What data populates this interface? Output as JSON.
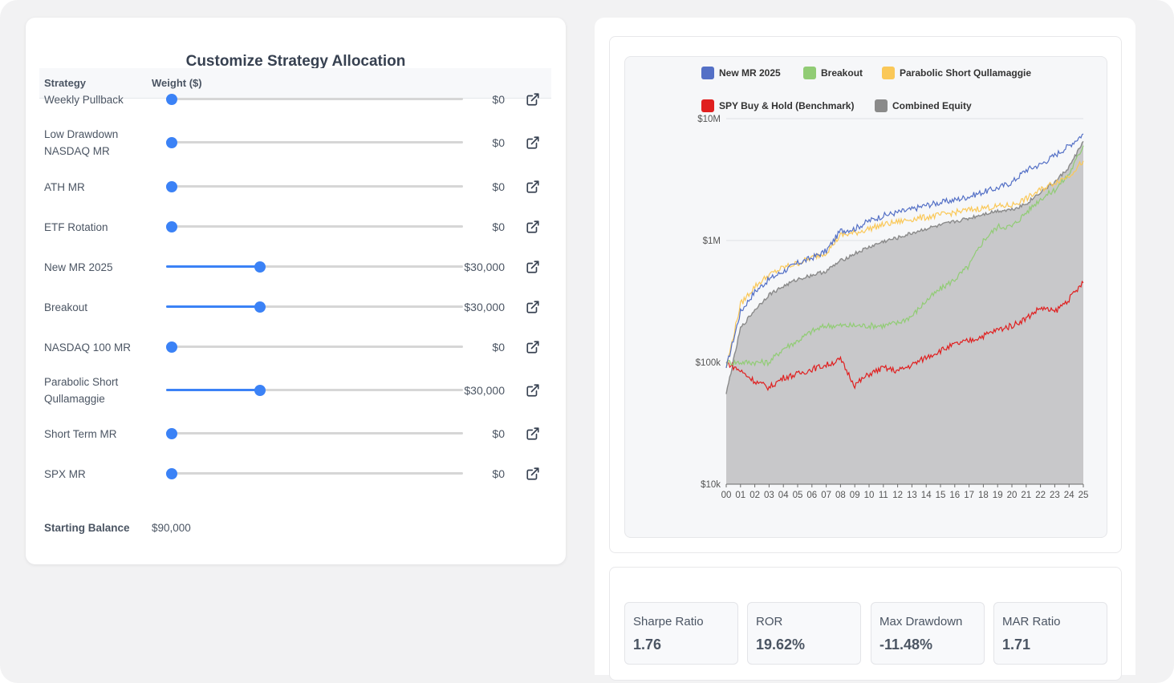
{
  "allocation": {
    "title": "Customize Strategy Allocation",
    "col_strategy": "Strategy",
    "col_weight": "Weight ($)",
    "rows": [
      {
        "name": "Weekly Pullback",
        "value": "$0",
        "fraction": 0
      },
      {
        "name": "Low Drawdown NASDAQ MR",
        "value": "$0",
        "fraction": 0
      },
      {
        "name": "ATH MR",
        "value": "$0",
        "fraction": 0
      },
      {
        "name": "ETF Rotation",
        "value": "$0",
        "fraction": 0
      },
      {
        "name": "New MR 2025",
        "value": "$30,000",
        "fraction": 0.31
      },
      {
        "name": "Breakout",
        "value": "$30,000",
        "fraction": 0.31
      },
      {
        "name": "NASDAQ 100 MR",
        "value": "$0",
        "fraction": 0
      },
      {
        "name": "Parabolic Short Qullamaggie",
        "value": "$30,000",
        "fraction": 0.31
      },
      {
        "name": "Short Term MR",
        "value": "$0",
        "fraction": 0
      },
      {
        "name": "SPX MR",
        "value": "$0",
        "fraction": 0
      }
    ],
    "starting_balance_label": "Starting Balance",
    "starting_balance_value": "$90,000"
  },
  "chart_data": {
    "type": "line",
    "title": "",
    "xlabel": "",
    "ylabel": "",
    "y_scale": "log",
    "ylim": [
      10000,
      10000000
    ],
    "y_ticks": [
      {
        "value": 10000,
        "label": "$10k"
      },
      {
        "value": 100000,
        "label": "$100k"
      },
      {
        "value": 1000000,
        "label": "$1M"
      },
      {
        "value": 10000000,
        "label": "$10M"
      }
    ],
    "x_tick_labels": [
      "00",
      "01",
      "02",
      "03",
      "04",
      "05",
      "06",
      "07",
      "08",
      "09",
      "10",
      "11",
      "12",
      "13",
      "14",
      "15",
      "16",
      "17",
      "18",
      "19",
      "20",
      "21",
      "22",
      "23",
      "24",
      "25"
    ],
    "grid": true,
    "legend_position": "top",
    "x": [
      0,
      1,
      2,
      3,
      4,
      5,
      6,
      7,
      8,
      9,
      10,
      11,
      12,
      13,
      14,
      15,
      16,
      17,
      18,
      19,
      20,
      21,
      22,
      23,
      24,
      25
    ],
    "series": [
      {
        "name": "New MR 2025",
        "color": "#5470c6",
        "type": "line",
        "values": [
          90000,
          260000,
          380000,
          480000,
          560000,
          650000,
          720000,
          820000,
          1200000,
          1250000,
          1450000,
          1600000,
          1700000,
          1800000,
          1950000,
          2050000,
          2150000,
          2300000,
          2500000,
          2700000,
          3000000,
          3800000,
          4200000,
          5000000,
          6000000,
          7500000
        ]
      },
      {
        "name": "Breakout",
        "color": "#91cc75",
        "type": "line",
        "values": [
          100000,
          100000,
          100000,
          100000,
          130000,
          150000,
          180000,
          200000,
          200000,
          200000,
          200000,
          200000,
          210000,
          240000,
          320000,
          400000,
          480000,
          620000,
          1000000,
          1300000,
          1300000,
          1700000,
          2200000,
          2600000,
          3500000,
          6000000
        ]
      },
      {
        "name": "Parabolic Short Qullamaggie",
        "color": "#fac858",
        "type": "line",
        "values": [
          90000,
          300000,
          420000,
          520000,
          600000,
          650000,
          720000,
          800000,
          1100000,
          1150000,
          1250000,
          1350000,
          1420000,
          1500000,
          1550000,
          1620000,
          1700000,
          1780000,
          1850000,
          1900000,
          1950000,
          2200000,
          2600000,
          3000000,
          3400000,
          4500000
        ]
      },
      {
        "name": "SPY Buy & Hold (Benchmark)",
        "color": "#e01f1f",
        "type": "line",
        "values": [
          100000,
          85000,
          70000,
          62000,
          75000,
          80000,
          88000,
          95000,
          105000,
          65000,
          80000,
          90000,
          85000,
          95000,
          110000,
          125000,
          140000,
          150000,
          165000,
          185000,
          200000,
          230000,
          280000,
          260000,
          330000,
          450000
        ]
      },
      {
        "name": "Combined Equity",
        "color": "#8a8a8a",
        "type": "area",
        "values": [
          55000,
          190000,
          270000,
          360000,
          420000,
          480000,
          520000,
          560000,
          680000,
          780000,
          880000,
          980000,
          1050000,
          1150000,
          1250000,
          1330000,
          1430000,
          1520000,
          1650000,
          1750000,
          1800000,
          2000000,
          2500000,
          3000000,
          4000000,
          6500000
        ]
      }
    ]
  },
  "stats": [
    {
      "label": "Sharpe Ratio",
      "value": "1.76"
    },
    {
      "label": "ROR",
      "value": "19.62%"
    },
    {
      "label": "Max Drawdown",
      "value": "-11.48%"
    },
    {
      "label": "MAR Ratio",
      "value": "1.71"
    }
  ]
}
